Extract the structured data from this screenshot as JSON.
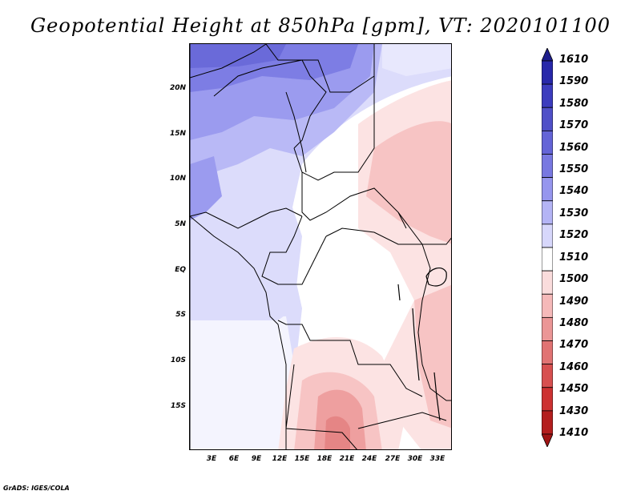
{
  "title": "Geopotential Height at 850hPa [gpm], VT: 2020101100",
  "credit": "GrADS: IGES/COLA",
  "map": {
    "region": "Central Africa",
    "lat_labels": [
      "20N",
      "15N",
      "10N",
      "5N",
      "EQ",
      "5S",
      "10S",
      "15S"
    ],
    "lon_labels": [
      "3E",
      "6E",
      "9E",
      "12E",
      "15E",
      "18E",
      "21E",
      "24E",
      "27E",
      "30E",
      "33E"
    ]
  },
  "colorbar": {
    "levels": [
      "1610",
      "1590",
      "1580",
      "1570",
      "1560",
      "1550",
      "1540",
      "1530",
      "1520",
      "1510",
      "1500",
      "1490",
      "1480",
      "1470",
      "1460",
      "1450",
      "1430",
      "1410"
    ],
    "colors": [
      "#1e1e8c",
      "#2828aa",
      "#3c3cbe",
      "#5050c8",
      "#6464d7",
      "#7878e1",
      "#9696ee",
      "#b4b4f5",
      "#d7d7fb",
      "#ffffff",
      "#fadcdc",
      "#f5b9b9",
      "#eb9696",
      "#e17373",
      "#d75050",
      "#cd3232",
      "#b41e1e",
      "#a01414"
    ]
  }
}
